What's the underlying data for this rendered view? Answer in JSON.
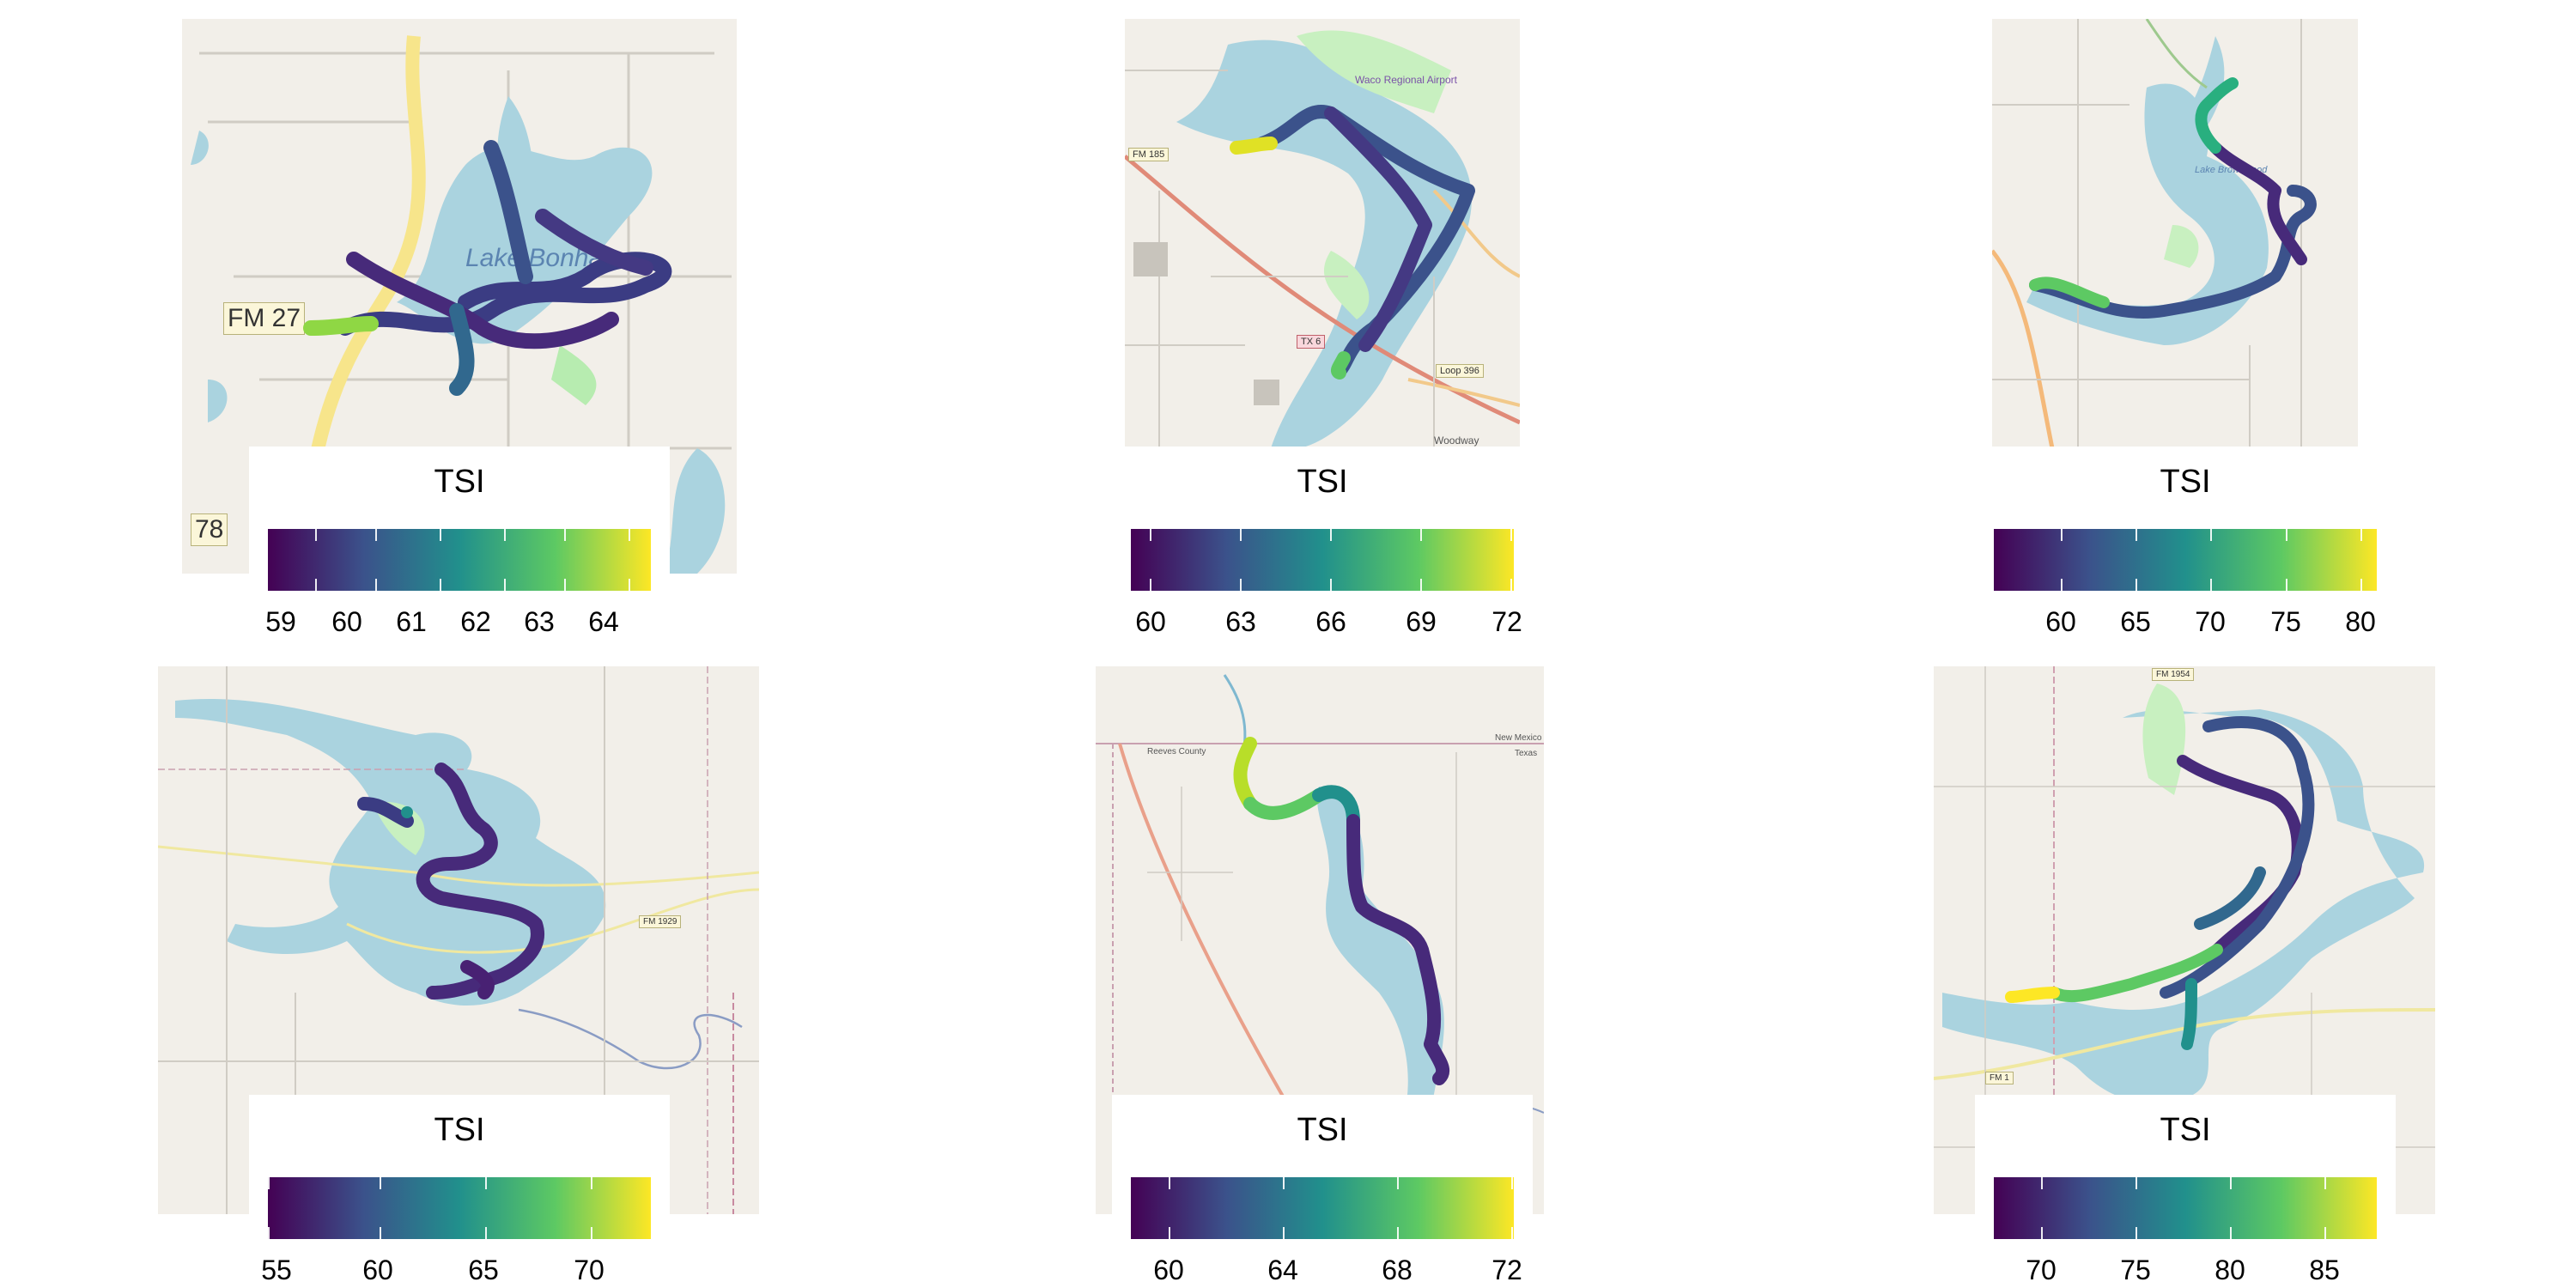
{
  "colors": {
    "viridis": [
      "#440154",
      "#3b528b",
      "#21908c",
      "#5dc963",
      "#fde725"
    ],
    "water": "#aad3df",
    "land": "#f2efe9",
    "park": "#c8f0c0"
  },
  "panels": [
    {
      "legend_title": "TSI",
      "ticks": [
        "59",
        "60",
        "61",
        "62",
        "63",
        "64"
      ],
      "map_labels": [
        "Lake Bonham"
      ],
      "road_labels": [
        "FM 27",
        "78"
      ]
    },
    {
      "legend_title": "TSI",
      "ticks": [
        "60",
        "63",
        "66",
        "69",
        "72"
      ],
      "map_labels": [
        "Waco Regional Airport",
        "Woodway"
      ],
      "road_labels": [
        "FM 185",
        "TX 6",
        "Loop 396"
      ]
    },
    {
      "legend_title": "TSI",
      "ticks": [
        "60",
        "65",
        "70",
        "75",
        "80"
      ],
      "map_labels": [
        "Lake Brownwood"
      ],
      "road_labels": []
    },
    {
      "legend_title": "TSI",
      "ticks": [
        "55",
        "60",
        "65",
        "70"
      ],
      "map_labels": [],
      "road_labels": [
        "FM 1929"
      ]
    },
    {
      "legend_title": "TSI",
      "ticks": [
        "60",
        "64",
        "68",
        "72"
      ],
      "map_labels": [
        "Reeves County",
        "New Mexico",
        "Texas"
      ],
      "road_labels": []
    },
    {
      "legend_title": "TSI",
      "ticks": [
        "70",
        "75",
        "80",
        "85"
      ],
      "map_labels": [],
      "road_labels": [
        "FM 1954",
        "FM 1"
      ]
    }
  ]
}
